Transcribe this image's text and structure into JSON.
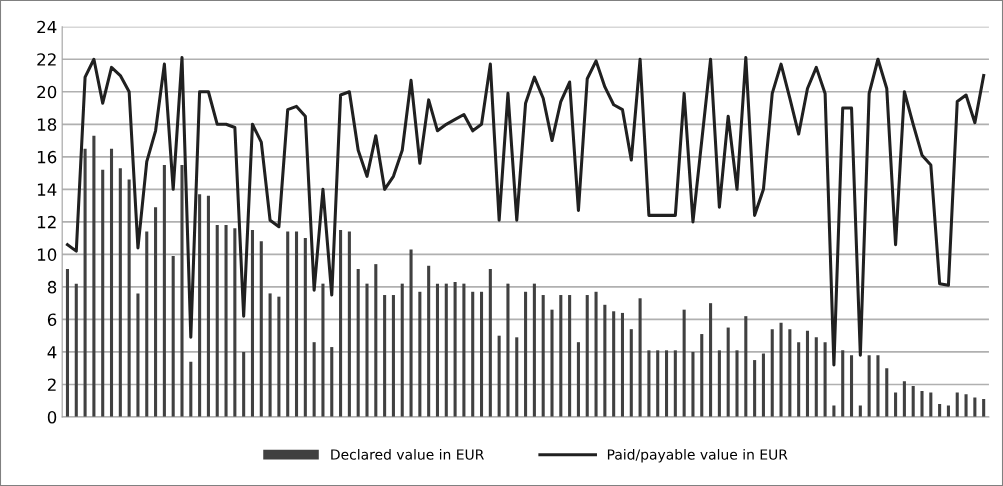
{
  "chart_data": {
    "type": "bar",
    "categories": [
      null,
      null,
      null,
      null,
      null,
      null,
      null,
      null,
      null,
      null,
      null,
      null,
      null,
      null,
      null,
      null,
      null,
      null,
      null,
      null,
      null,
      null,
      null,
      null,
      null,
      null,
      null,
      null,
      null,
      null,
      null,
      null,
      null,
      null,
      null,
      null,
      null,
      null,
      null,
      null,
      null,
      null,
      null,
      null,
      null,
      null,
      null,
      null,
      null,
      null,
      null,
      null,
      null,
      null,
      null,
      null,
      null,
      null,
      null,
      null,
      null,
      null,
      null,
      null,
      null,
      null,
      null,
      null,
      null,
      null,
      null,
      null,
      null,
      null,
      null,
      null,
      null,
      null,
      null,
      null,
      null,
      null,
      null,
      null,
      null,
      null,
      null,
      null,
      null,
      null,
      null,
      null,
      null,
      null,
      null,
      null,
      null,
      null,
      null,
      null,
      null,
      null,
      null,
      null,
      null
    ],
    "series": [
      {
        "name": "Declared value in EUR",
        "color": "#404040",
        "values": [
          9.1,
          8.2,
          16.5,
          17.3,
          15.2,
          16.5,
          15.3,
          14.6,
          7.6,
          11.4,
          12.9,
          15.5,
          9.9,
          15.5,
          3.4,
          13.7,
          13.6,
          11.8,
          11.8,
          11.6,
          4.0,
          11.5,
          10.8,
          7.6,
          7.4,
          11.4,
          11.4,
          11.0,
          4.6,
          8.2,
          4.3,
          11.5,
          11.4,
          9.1,
          8.2,
          9.4,
          7.5,
          7.5,
          8.2,
          10.3,
          7.7,
          9.3,
          8.2,
          8.2,
          8.3,
          8.2,
          7.7,
          7.7,
          9.1,
          5.0,
          8.2,
          4.9,
          7.7,
          8.2,
          7.5,
          6.6,
          7.5,
          7.5,
          4.6,
          7.5,
          7.7,
          6.9,
          6.5,
          6.4,
          5.4,
          7.3,
          4.1,
          4.1,
          4.1,
          4.1,
          6.6,
          4.0,
          5.1,
          7.0,
          4.1,
          5.5,
          4.1,
          6.2,
          3.5,
          3.9,
          5.4,
          5.8,
          5.4,
          4.6,
          5.3,
          4.9,
          4.6,
          0.7,
          4.1,
          3.8,
          0.7,
          3.8,
          3.8,
          3.0,
          1.5,
          2.2,
          1.9,
          1.6,
          1.5,
          0.8,
          0.7,
          1.5,
          1.4,
          1.2,
          1.1
        ]
      },
      {
        "name": "Paid/payable value in EUR",
        "type": "line",
        "color": "#202020",
        "values": [
          10.6,
          10.2,
          20.9,
          22.0,
          19.3,
          21.5,
          21.0,
          20.0,
          10.4,
          15.7,
          17.6,
          21.7,
          14.0,
          22.1,
          4.9,
          20.0,
          20.0,
          18.0,
          18.0,
          17.8,
          6.2,
          18.0,
          16.9,
          12.1,
          11.7,
          18.9,
          19.1,
          18.5,
          7.8,
          14.0,
          7.5,
          19.8,
          20.0,
          16.4,
          14.8,
          17.3,
          14.0,
          14.8,
          16.4,
          20.7,
          15.6,
          19.5,
          17.6,
          18.0,
          18.3,
          18.6,
          17.6,
          18.0,
          21.7,
          12.1,
          19.9,
          12.1,
          19.3,
          20.9,
          19.6,
          17.0,
          19.4,
          20.6,
          12.7,
          20.8,
          21.9,
          20.3,
          19.2,
          18.9,
          15.8,
          22.0,
          12.4,
          12.4,
          12.4,
          12.4,
          19.9,
          12.0,
          17.0,
          22.0,
          12.9,
          18.5,
          14.0,
          22.1,
          12.4,
          14.0,
          19.9,
          21.7,
          19.6,
          17.4,
          20.2,
          21.5,
          19.9,
          3.2,
          19.0,
          19.0,
          3.8,
          19.9,
          22.0,
          20.2,
          10.6,
          20.0,
          18.0,
          16.1,
          15.5,
          8.2,
          8.1,
          19.4,
          19.8,
          18.1,
          21.0
        ]
      }
    ],
    "ylim": [
      0,
      24
    ],
    "yticks": [
      0,
      2,
      4,
      6,
      8,
      10,
      12,
      14,
      16,
      18,
      20,
      22,
      24
    ],
    "grid": "y",
    "legend": "bottom",
    "tick_labels": "y"
  }
}
